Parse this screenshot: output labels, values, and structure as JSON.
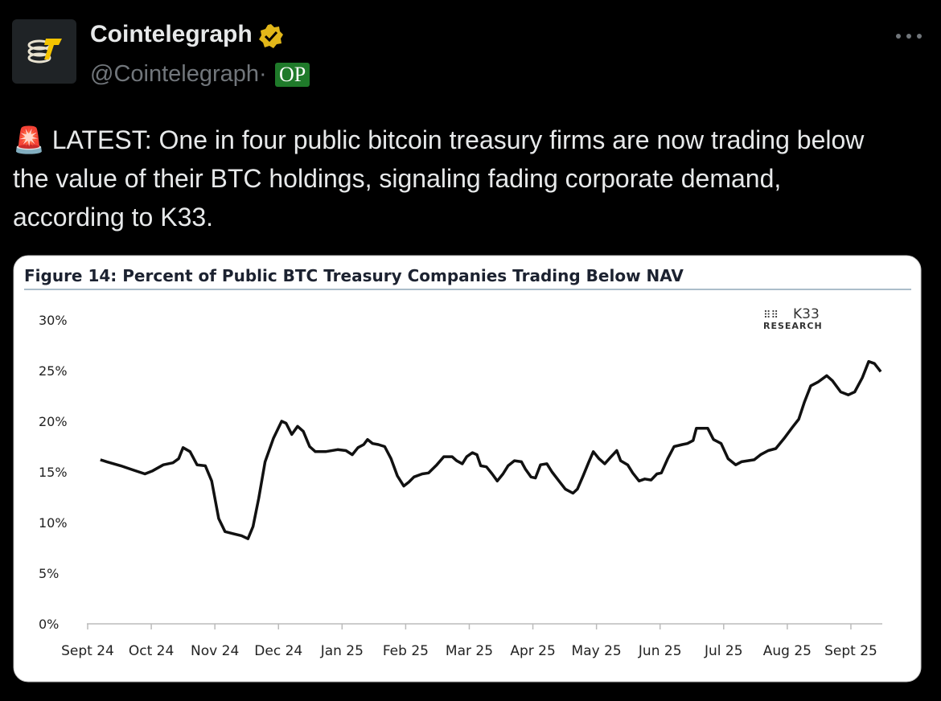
{
  "post": {
    "author": "Cointelegraph",
    "handle": "@Cointelegraph·",
    "badge": "OP",
    "text": "🚨 LATEST: One in four public bitcoin treasury firms are now trading below the value of their BTC holdings, signaling fading corporate demand, according to K33."
  },
  "chart_data": {
    "type": "line",
    "title": "Figure 14: Percent of Public BTC Treasury Companies Trading Below NAV",
    "brand": "K33",
    "brand_subtitle": "RESEARCH",
    "color": "#111111",
    "xlim": [
      0,
      12.5
    ],
    "xticks": [
      {
        "value": 0,
        "label": "Sept 24"
      },
      {
        "value": 1,
        "label": "Oct 24"
      },
      {
        "value": 2,
        "label": "Nov 24"
      },
      {
        "value": 3,
        "label": "Dec 24"
      },
      {
        "value": 4,
        "label": "Jan 25"
      },
      {
        "value": 5,
        "label": "Feb 25"
      },
      {
        "value": 6,
        "label": "Mar 25"
      },
      {
        "value": 7,
        "label": "Apr 25"
      },
      {
        "value": 8,
        "label": "May 25"
      },
      {
        "value": 9,
        "label": "Jun 25"
      },
      {
        "value": 10,
        "label": "Jul 25"
      },
      {
        "value": 11,
        "label": "Aug 25"
      },
      {
        "value": 12,
        "label": "Sept 25"
      }
    ],
    "ylim": [
      0,
      30
    ],
    "yticks": [
      {
        "value": 0,
        "label": "0%"
      },
      {
        "value": 5,
        "label": "5%"
      },
      {
        "value": 10,
        "label": "10%"
      },
      {
        "value": 15,
        "label": "15%"
      },
      {
        "value": 20,
        "label": "20%"
      },
      {
        "value": 25,
        "label": "25%"
      },
      {
        "value": 30,
        "label": "30%"
      }
    ],
    "x": [
      0.2,
      0.3,
      0.52,
      0.71,
      0.9,
      1.02,
      1.19,
      1.34,
      1.43,
      1.5,
      1.61,
      1.72,
      1.85,
      1.95,
      2.06,
      2.16,
      2.29,
      2.42,
      2.52,
      2.6,
      2.69,
      2.79,
      2.92,
      3.05,
      3.12,
      3.21,
      3.3,
      3.39,
      3.49,
      3.58,
      3.74,
      3.93,
      4.06,
      4.16,
      4.25,
      4.34,
      4.4,
      4.48,
      4.57,
      4.67,
      4.77,
      4.87,
      4.97,
      5.05,
      5.13,
      5.26,
      5.36,
      5.49,
      5.6,
      5.73,
      5.8,
      5.89,
      5.96,
      6.05,
      6.12,
      6.18,
      6.27,
      6.36,
      6.44,
      6.53,
      6.61,
      6.71,
      6.82,
      6.88,
      6.97,
      7.04,
      7.12,
      7.22,
      7.3,
      7.41,
      7.51,
      7.63,
      7.7,
      7.79,
      7.88,
      7.95,
      8.04,
      8.13,
      8.23,
      8.32,
      8.38,
      8.49,
      8.57,
      8.67,
      8.76,
      8.86,
      8.95,
      9.02,
      9.12,
      9.22,
      9.35,
      9.43,
      9.52,
      9.57,
      9.66,
      9.75,
      9.84,
      9.96,
      10.07,
      10.19,
      10.28,
      10.38,
      10.48,
      10.58,
      10.7,
      10.82,
      10.95,
      11.08,
      11.18,
      11.27,
      11.37,
      11.49,
      11.62,
      11.71,
      11.84,
      11.96,
      12.06,
      12.18,
      12.28,
      12.37,
      12.47
    ],
    "values": [
      16.2,
      16.0,
      15.6,
      15.2,
      14.8,
      15.1,
      15.7,
      15.9,
      16.3,
      17.4,
      17.0,
      15.7,
      15.6,
      14.1,
      10.4,
      9.1,
      8.9,
      8.7,
      8.4,
      9.6,
      12.4,
      16.0,
      18.3,
      20.0,
      19.8,
      18.7,
      19.5,
      19.0,
      17.5,
      17.0,
      17.0,
      17.2,
      17.1,
      16.7,
      17.4,
      17.7,
      18.2,
      17.8,
      17.7,
      17.5,
      16.3,
      14.6,
      13.6,
      14.0,
      14.5,
      14.8,
      14.9,
      15.7,
      16.5,
      16.5,
      16.1,
      15.8,
      16.5,
      16.9,
      16.7,
      15.6,
      15.5,
      14.8,
      14.1,
      14.8,
      15.6,
      16.1,
      16.0,
      15.3,
      14.5,
      14.4,
      15.7,
      15.8,
      15.0,
      14.1,
      13.3,
      12.9,
      13.3,
      14.6,
      16.0,
      17.0,
      16.3,
      15.8,
      16.5,
      17.1,
      16.1,
      15.7,
      14.9,
      14.1,
      14.3,
      14.2,
      14.8,
      14.9,
      16.3,
      17.5,
      17.7,
      17.8,
      18.1,
      19.3,
      19.3,
      19.3,
      18.2,
      17.8,
      16.3,
      15.7,
      16.0,
      16.1,
      16.2,
      16.7,
      17.1,
      17.3,
      18.3,
      19.4,
      20.2,
      21.9,
      23.5,
      23.9,
      24.5,
      24.0,
      22.9,
      22.6,
      22.9,
      24.3,
      25.9,
      25.7,
      24.9
    ]
  }
}
